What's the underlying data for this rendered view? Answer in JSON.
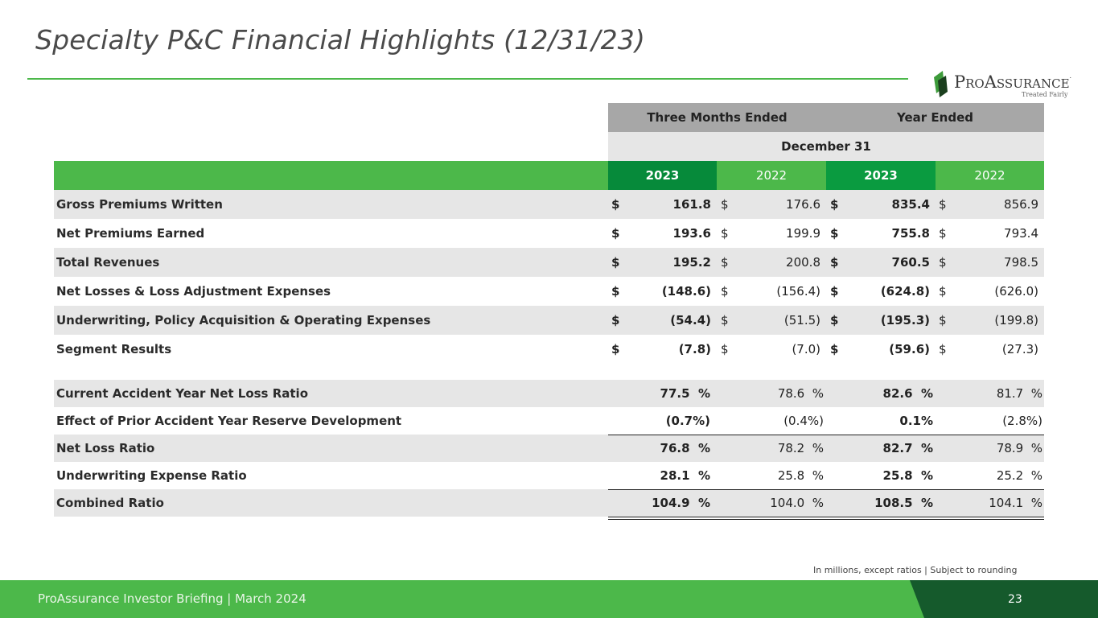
{
  "title": "Specialty P&C Financial Highlights (12/31/23)",
  "logo": {
    "name_first": "P",
    "name_rest_1": "RO",
    "name_mid": "A",
    "name_rest_2": "SSURANCE",
    "reg": ".",
    "tagline": "Treated Fairly"
  },
  "headers": {
    "three_months": "Three Months Ended",
    "year_ended": "Year Ended",
    "period": "December 31",
    "years": [
      "2023",
      "2022",
      "2023",
      "2022"
    ]
  },
  "currency_rows": [
    {
      "label": "Gross Premiums Written",
      "values": [
        "161.8",
        "176.6",
        "835.4",
        "856.9"
      ]
    },
    {
      "label": "Net Premiums Earned",
      "values": [
        "193.6",
        "199.9",
        "755.8",
        "793.4"
      ]
    },
    {
      "label": "Total Revenues",
      "values": [
        "195.2",
        "200.8",
        "760.5",
        "798.5"
      ]
    },
    {
      "label": "Net Losses & Loss Adjustment Expenses",
      "values": [
        "(148.6)",
        "(156.4)",
        "(624.8)",
        "(626.0)"
      ]
    },
    {
      "label": "Underwriting, Policy Acquisition & Operating Expenses",
      "values": [
        "(54.4)",
        "(51.5)",
        "(195.3)",
        "(199.8)"
      ]
    },
    {
      "label": "Segment Results",
      "values": [
        "(7.8)",
        "(7.0)",
        "(59.6)",
        "(27.3)"
      ]
    }
  ],
  "currency_symbol": "$",
  "ratio_rows": [
    {
      "label": "Current Accident Year Net Loss Ratio",
      "values": [
        "77.5  %",
        "78.6  %",
        "82.6  %",
        "81.7  %"
      ]
    },
    {
      "label": "Effect of Prior Accident Year Reserve Development",
      "values": [
        "(0.7%)",
        "(0.4%)",
        "0.1%",
        "(2.8%)"
      ]
    },
    {
      "label": "Net Loss Ratio",
      "values": [
        "76.8  %",
        "78.2  %",
        "82.7  %",
        "78.9  %"
      ]
    },
    {
      "label": "Underwriting Expense Ratio",
      "values": [
        "28.1  %",
        "25.8  %",
        "25.8  %",
        "25.2  %"
      ]
    },
    {
      "label": "Combined Ratio",
      "values": [
        "104.9  %",
        "104.0  %",
        "108.5  %",
        "104.1  %"
      ]
    }
  ],
  "note": "In millions, except ratios  |  Subject to rounding",
  "footer": {
    "text": "ProAssurance Investor Briefing | March 2024",
    "page": "23"
  },
  "colors": {
    "accent_green": "#4cb84a",
    "dark_green": "#068a3a",
    "footer_dark": "#155a2c",
    "header_gray": "#a7a7a7",
    "row_shade": "#e6e6e6"
  }
}
